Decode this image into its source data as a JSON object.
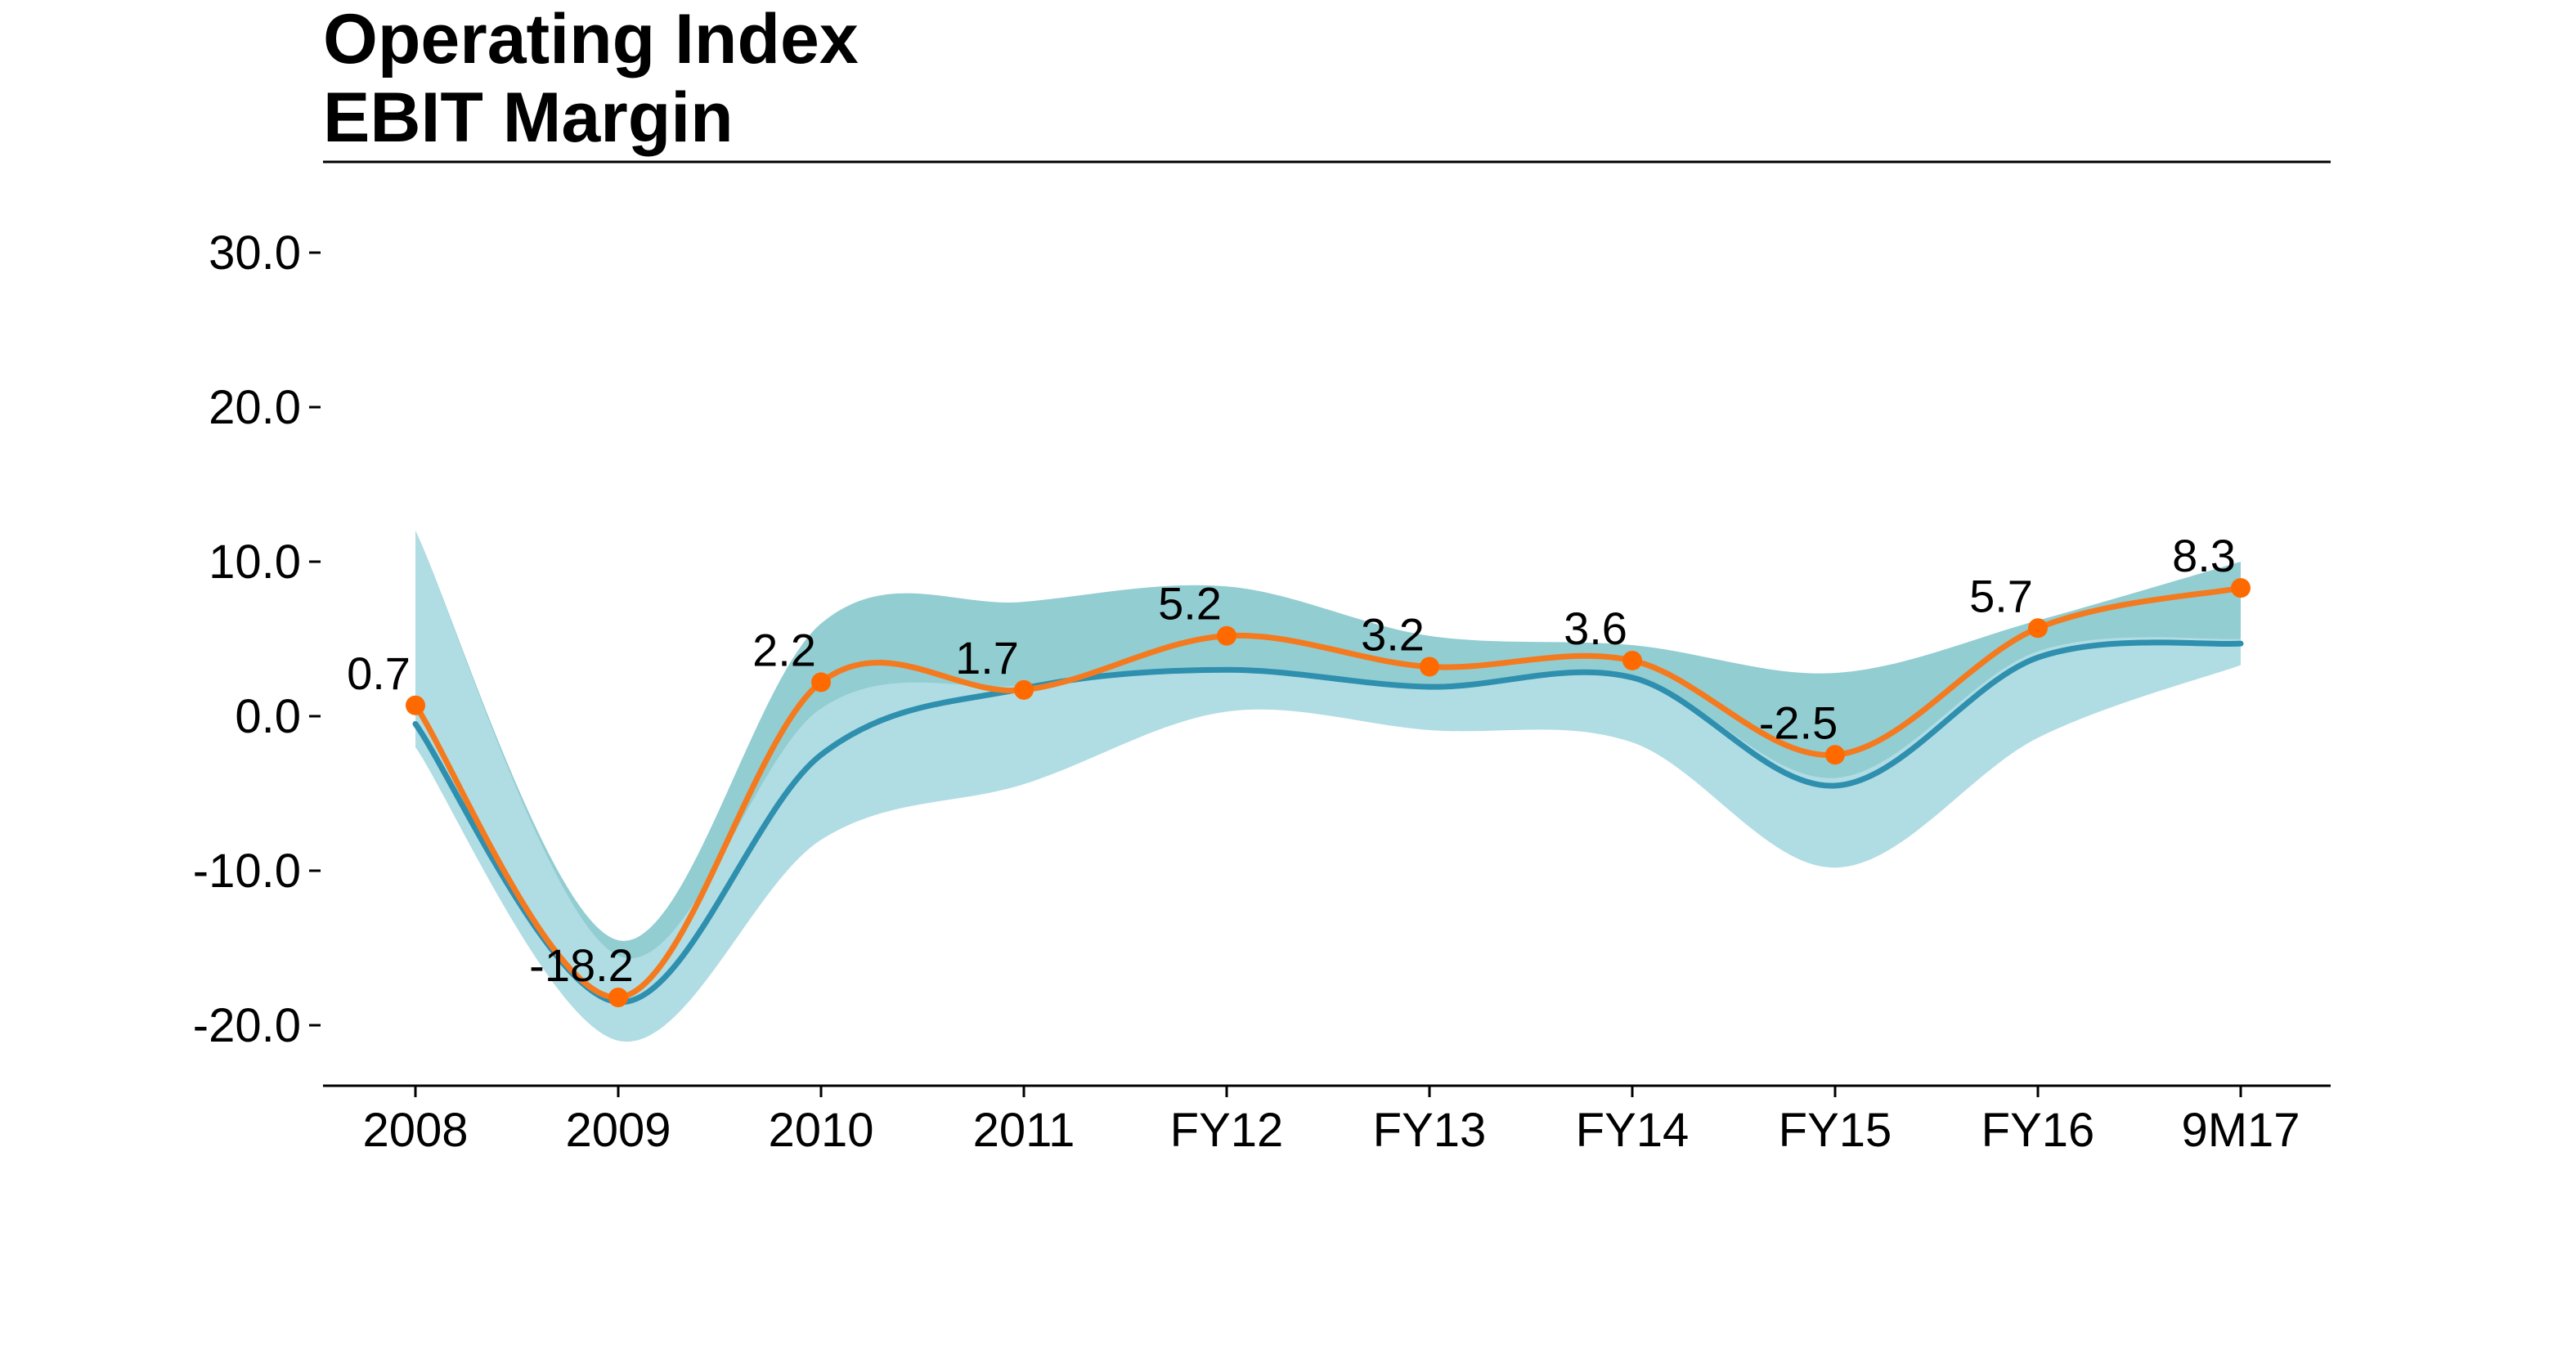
{
  "title_line1": "Operating Index",
  "title_line2": "EBIT Margin",
  "chart_data": {
    "type": "line",
    "title": "Operating Index EBIT Margin",
    "xlabel": "",
    "ylabel": "",
    "categories": [
      "2008",
      "2009",
      "2010",
      "2011",
      "FY12",
      "FY13",
      "FY14",
      "FY15",
      "FY16",
      "9M17"
    ],
    "series": [
      {
        "values": [
          0.7,
          -18.2,
          2.2,
          1.7,
          5.2,
          3.2,
          3.6,
          -2.5,
          5.7,
          8.3
        ],
        "color": "#ff6a00",
        "line_color": "#f47a1f",
        "labels": [
          "0.7",
          "-18.2",
          "2.2",
          "1.7",
          "5.2",
          "3.2",
          "3.6",
          "-2.5",
          "5.7",
          "8.3"
        ]
      },
      {
        "values": [
          -0.5,
          -18.5,
          -2.5,
          1.8,
          3.0,
          1.9,
          2.5,
          -4.5,
          3.8,
          4.7
        ],
        "color": "#2e8fae"
      }
    ],
    "bands": [
      {
        "upper": [
          12.0,
          -14.5,
          6.0,
          7.4,
          8.4,
          5.2,
          4.6,
          2.8,
          6.2,
          10.0
        ],
        "lower": [
          -2.0,
          -20.2,
          -6.5,
          -4.0,
          0.4,
          -0.8,
          -1.6,
          -9.2,
          -1.2,
          3.5
        ],
        "color": "#92cdd2"
      },
      {
        "upper": [
          12.0,
          -15.5,
          0.5,
          2.0,
          3.2,
          2.0,
          2.6,
          -4.0,
          4.2,
          5.0
        ],
        "lower": [
          -2.0,
          -21.0,
          -8.0,
          -4.4,
          0.3,
          -0.9,
          -1.7,
          -9.8,
          -1.4,
          3.3
        ],
        "color": "#b0dde3"
      }
    ],
    "y_ticks": [
      "30.0",
      "20.0",
      "10.0",
      "0.0",
      "-10.0",
      "-20.0"
    ],
    "ylim": [
      -24,
      34
    ],
    "grid": false,
    "legend": "none"
  }
}
